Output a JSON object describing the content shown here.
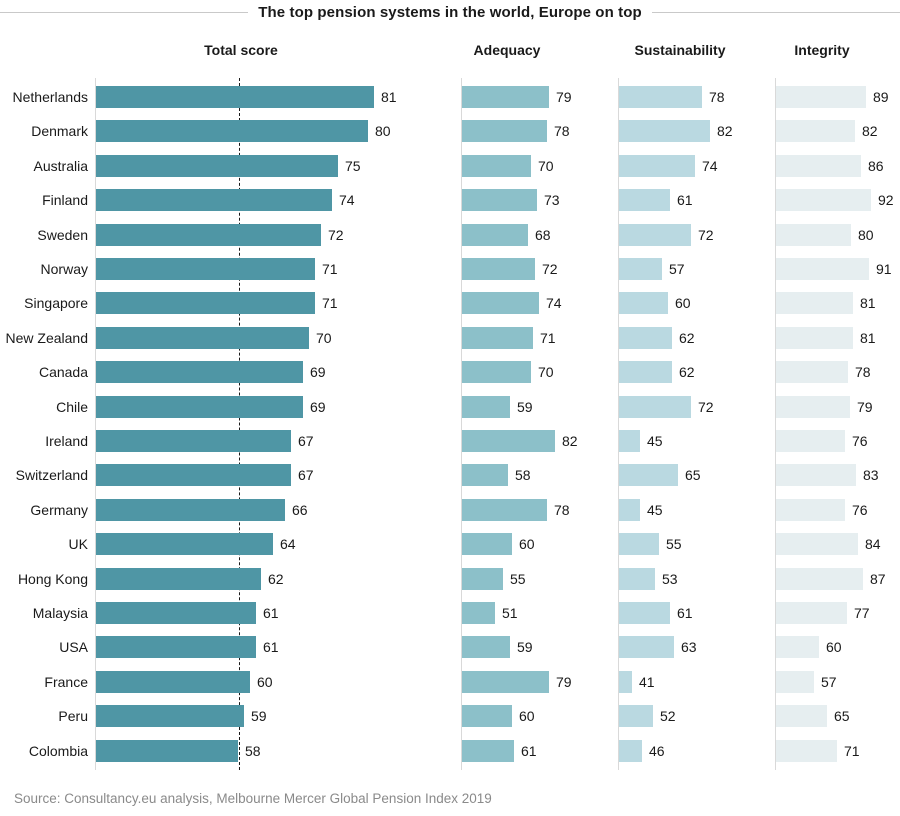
{
  "title": "The top pension systems in the world, Europe on top",
  "source_note": "Source: Consultancy.eu analysis, Melbourne Mercer Global Pension Index 2019",
  "colors": {
    "total_score_bar": "#4f96a5",
    "adequacy_bar": "#8cc0c9",
    "sustainability_bar": "#bad9e1",
    "integrity_bar": "#e6eef0",
    "axis_line": "#d9d9d9",
    "title_rule": "#c9c9c9",
    "reference_line": "#1a1a1a",
    "source_text": "#8a8a8a"
  },
  "chart_data": {
    "type": "bar",
    "orientation": "horizontal",
    "title": "The top pension systems in the world, Europe on top",
    "axis_min": 34,
    "value_labels": true,
    "grid": false,
    "legend": "none",
    "categories": [
      "Netherlands",
      "Denmark",
      "Australia",
      "Finland",
      "Sweden",
      "Norway",
      "Singapore",
      "New Zealand",
      "Canada",
      "Chile",
      "Ireland",
      "Switzerland",
      "Germany",
      "UK",
      "Hong Kong",
      "Malaysia",
      "USA",
      "France",
      "Peru",
      "Colombia"
    ],
    "series": [
      {
        "name": "Total score",
        "values": [
          81,
          80,
          75,
          74,
          72,
          71,
          71,
          70,
          69,
          69,
          67,
          67,
          66,
          64,
          62,
          61,
          61,
          60,
          59,
          58
        ]
      },
      {
        "name": "Adequacy",
        "values": [
          79,
          78,
          70,
          73,
          68,
          72,
          74,
          71,
          70,
          59,
          82,
          58,
          78,
          60,
          55,
          51,
          59,
          79,
          60,
          61
        ]
      },
      {
        "name": "Sustainability",
        "values": [
          78,
          82,
          74,
          61,
          72,
          57,
          60,
          62,
          62,
          72,
          45,
          65,
          45,
          55,
          53,
          61,
          63,
          41,
          52,
          46
        ]
      },
      {
        "name": "Integrity",
        "values": [
          89,
          82,
          86,
          92,
          80,
          91,
          81,
          81,
          78,
          79,
          76,
          83,
          76,
          84,
          87,
          77,
          60,
          57,
          65,
          71
        ]
      }
    ],
    "reference_line": {
      "series": "Total score",
      "style": "dashed",
      "approx_value": 59
    }
  }
}
